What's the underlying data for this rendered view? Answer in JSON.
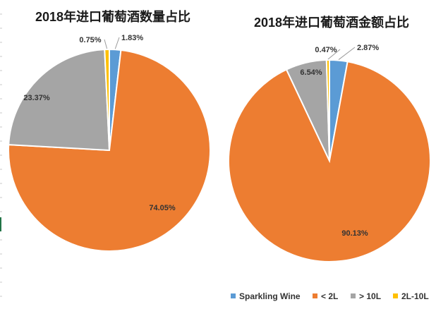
{
  "colors": {
    "sparkling": "#5b9bd5",
    "lt2l": "#ed7d31",
    "gt10l": "#a5a5a5",
    "between": "#ffc000"
  },
  "legend": [
    {
      "name": "Sparkling Wine",
      "color_key": "sparkling"
    },
    {
      "name": "< 2L",
      "color_key": "lt2l"
    },
    {
      "name": "> 10L",
      "color_key": "gt10l"
    },
    {
      "name": "2L-10L",
      "color_key": "between"
    }
  ],
  "chart_data": [
    {
      "type": "pie",
      "title": "2018年进口葡萄酒数量占比",
      "slices": [
        {
          "name": "Sparkling Wine",
          "value": 1.83,
          "label": "1.83%",
          "color_key": "sparkling"
        },
        {
          "name": "< 2L",
          "value": 74.05,
          "label": "74.05%",
          "color_key": "lt2l"
        },
        {
          "name": "> 10L",
          "value": 23.37,
          "label": "23.37%",
          "color_key": "gt10l"
        },
        {
          "name": "2L-10L",
          "value": 0.75,
          "label": "0.75%",
          "color_key": "between"
        }
      ]
    },
    {
      "type": "pie",
      "title": "2018年进口葡萄酒金额占比",
      "slices": [
        {
          "name": "Sparkling Wine",
          "value": 2.87,
          "label": "2.87%",
          "color_key": "sparkling"
        },
        {
          "name": "< 2L",
          "value": 90.13,
          "label": "90.13%",
          "color_key": "lt2l"
        },
        {
          "name": "> 10L",
          "value": 6.54,
          "label": "6.54%",
          "color_key": "gt10l"
        },
        {
          "name": "2L-10L",
          "value": 0.47,
          "label": "0.47%",
          "color_key": "between"
        }
      ]
    }
  ]
}
